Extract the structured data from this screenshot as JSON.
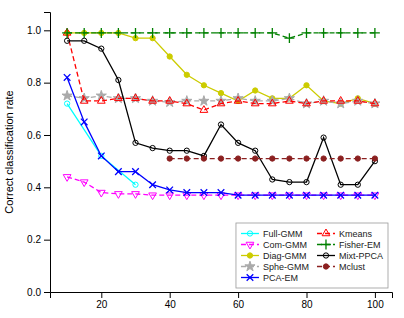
{
  "chart_data": {
    "type": "line",
    "ylabel": "Correct classification rate",
    "xlim": [
      5,
      105
    ],
    "ylim": [
      0.0,
      1.07
    ],
    "xticks": [
      20,
      40,
      60,
      80,
      100
    ],
    "yticks": [
      {
        "value": 0.0,
        "label": "0.0"
      },
      0.2,
      0.4,
      0.6,
      0.8,
      {
        "value": 1.0,
        "label": "1.0"
      }
    ],
    "grid": false,
    "legend": "lower right",
    "series": [
      {
        "name": "Full-GMM",
        "color": "cyan",
        "marker": "circle-open",
        "line_style": "solid",
        "x": [
          10,
          20,
          30
        ],
        "values": [
          0.72,
          0.52,
          0.41
        ]
      },
      {
        "name": "Com-GMM",
        "color": "magenta",
        "marker": "triangle-down-open",
        "line_style": "dashed",
        "x": [
          10,
          15,
          20,
          25,
          30,
          35,
          40,
          45,
          50,
          55,
          60,
          65,
          70,
          75,
          80,
          85,
          90,
          95,
          100
        ],
        "values": [
          0.44,
          0.42,
          0.38,
          0.375,
          0.375,
          0.37,
          0.37,
          0.37,
          0.37,
          0.37,
          0.37,
          0.37,
          0.37,
          0.37,
          0.37,
          0.37,
          0.37,
          0.37,
          0.37
        ]
      },
      {
        "name": "Diag-GMM",
        "color": "#CCCC00",
        "marker": "circle",
        "line_style": "solid",
        "x": [
          10,
          15,
          20,
          25,
          30,
          35,
          40,
          45,
          50,
          55,
          60,
          65,
          70,
          75,
          80,
          85,
          90,
          95,
          100
        ],
        "values": [
          0.99,
          0.99,
          0.99,
          0.99,
          0.97,
          0.97,
          0.9,
          0.83,
          0.79,
          0.76,
          0.73,
          0.77,
          0.74,
          0.74,
          0.79,
          0.73,
          0.72,
          0.74,
          0.72
        ]
      },
      {
        "name": "Sphe-GMM",
        "color": "#AAAAAA",
        "marker": "star",
        "line_style": "dashed",
        "x": [
          10,
          15,
          20,
          25,
          30,
          35,
          40,
          45,
          50,
          55,
          60,
          65,
          70,
          75,
          80,
          85,
          90,
          95,
          100
        ],
        "values": [
          0.75,
          0.74,
          0.75,
          0.74,
          0.74,
          0.73,
          0.725,
          0.73,
          0.73,
          0.73,
          0.74,
          0.73,
          0.73,
          0.74,
          0.72,
          0.73,
          0.72,
          0.73,
          0.72
        ]
      },
      {
        "name": "PCA-EM",
        "color": "blue",
        "marker": "x",
        "line_style": "solid",
        "x": [
          10,
          15,
          20,
          25,
          30,
          35,
          40,
          45,
          50,
          55,
          60,
          65,
          70,
          75,
          80,
          85,
          90,
          95,
          100
        ],
        "values": [
          0.82,
          0.65,
          0.52,
          0.46,
          0.46,
          0.41,
          0.39,
          0.38,
          0.38,
          0.38,
          0.37,
          0.37,
          0.37,
          0.37,
          0.37,
          0.37,
          0.37,
          0.37,
          0.37
        ]
      },
      {
        "name": "Kmeans",
        "color": "red",
        "marker": "triangle-up-open",
        "line_style": "dashed",
        "x": [
          10,
          15,
          20,
          25,
          30,
          35,
          40,
          45,
          50,
          55,
          60,
          65,
          70,
          75,
          80,
          85,
          90,
          95,
          100
        ],
        "values": [
          0.99,
          0.73,
          0.73,
          0.74,
          0.74,
          0.73,
          0.73,
          0.72,
          0.695,
          0.72,
          0.73,
          0.72,
          0.72,
          0.73,
          0.72,
          0.73,
          0.73,
          0.73,
          0.72
        ]
      },
      {
        "name": "Fisher-EM",
        "color": "green",
        "marker": "plus",
        "line_style": "dashed",
        "x": [
          10,
          15,
          20,
          25,
          30,
          35,
          40,
          45,
          50,
          55,
          60,
          65,
          70,
          75,
          80,
          85,
          90,
          95,
          100
        ],
        "values": [
          0.99,
          0.99,
          0.99,
          0.99,
          0.99,
          0.99,
          0.99,
          0.99,
          0.99,
          0.99,
          0.99,
          0.99,
          0.99,
          0.97,
          0.99,
          0.99,
          0.99,
          0.99,
          0.99
        ]
      },
      {
        "name": "Mixt-PPCA",
        "color": "black",
        "marker": "circle-open",
        "line_style": "solid",
        "x": [
          10,
          15,
          20,
          25,
          30,
          35,
          40,
          45,
          50,
          55,
          60,
          65,
          70,
          75,
          80,
          85,
          90,
          95,
          100
        ],
        "values": [
          0.96,
          0.96,
          0.93,
          0.81,
          0.57,
          0.55,
          0.54,
          0.54,
          0.52,
          0.64,
          0.57,
          0.54,
          0.43,
          0.42,
          0.42,
          0.59,
          0.41,
          0.41,
          0.5
        ]
      },
      {
        "name": "Mclust",
        "color": "#8B2020",
        "marker": "circle",
        "line_style": "dashed",
        "x": [
          40,
          45,
          50,
          55,
          60,
          65,
          70,
          75,
          80,
          85,
          90,
          95,
          100
        ],
        "values": [
          0.51,
          0.51,
          0.51,
          0.51,
          0.51,
          0.51,
          0.51,
          0.51,
          0.51,
          0.51,
          0.51,
          0.51,
          0.51
        ]
      }
    ]
  }
}
